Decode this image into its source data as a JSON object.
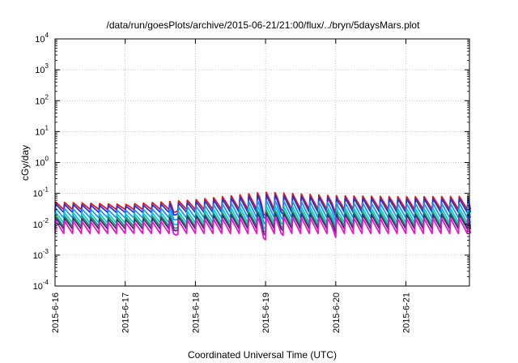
{
  "chart_data": {
    "type": "line",
    "title": "/data/run/goesPlots/archive/2015-06-21/21:00/flux/../bryn/5daysMars.plot",
    "xlabel": "Coordinated Universal Time (UTC)",
    "ylabel": "cGy/day",
    "yscale": "log",
    "ylim": [
      0.0001,
      10000
    ],
    "xlim_days": [
      0,
      5.92
    ],
    "grid": true,
    "legend": "none",
    "x_ticks": [
      "2015-6-16",
      "2015-6-17",
      "2015-6-18",
      "2015-6-19",
      "2015-6-20",
      "2015-6-21"
    ],
    "y_ticks": [
      {
        "base": "10",
        "exp": "-4"
      },
      {
        "base": "10",
        "exp": "-3"
      },
      {
        "base": "10",
        "exp": "-2"
      },
      {
        "base": "10",
        "exp": "-1"
      },
      {
        "base": "10",
        "exp": "0"
      },
      {
        "base": "10",
        "exp": "1"
      },
      {
        "base": "10",
        "exp": "2"
      },
      {
        "base": "10",
        "exp": "3"
      },
      {
        "base": "10",
        "exp": "4"
      }
    ],
    "oscillation_period_hours": 3,
    "series": [
      {
        "color": "#ee1111",
        "base": 0.03,
        "peaks": [
          0.052,
          0.044,
          0.062,
          0.11,
          0.085,
          0.078,
          0.08
        ]
      },
      {
        "color": "#2233dd",
        "base": 0.024,
        "peaks": [
          0.045,
          0.038,
          0.052,
          0.09,
          0.072,
          0.066,
          0.068
        ]
      },
      {
        "color": "#1e90ff",
        "base": 0.016,
        "peaks": [
          0.033,
          0.028,
          0.038,
          0.06,
          0.05,
          0.046,
          0.048
        ]
      },
      {
        "color": "#00ccdd",
        "base": 0.011,
        "peaks": [
          0.024,
          0.021,
          0.027,
          0.04,
          0.034,
          0.032,
          0.033
        ]
      },
      {
        "color": "#229955",
        "base": 0.0085,
        "peaks": [
          0.019,
          0.017,
          0.021,
          0.028,
          0.026,
          0.024,
          0.025
        ]
      },
      {
        "color": "#333377",
        "base": 0.007,
        "peaks": [
          0.016,
          0.014,
          0.018,
          0.023,
          0.021,
          0.02,
          0.021
        ]
      },
      {
        "color": "#ee11cc",
        "base": 0.005,
        "peaks": [
          0.013,
          0.011,
          0.014,
          0.017,
          0.016,
          0.015,
          0.016
        ]
      }
    ],
    "dips": [
      {
        "day": 1.7,
        "factor": 0.55
      },
      {
        "day": 2.98,
        "factor": 0.45
      },
      {
        "day": 3.22,
        "factor": 0.75
      },
      {
        "day": 4.0,
        "factor": 0.75
      }
    ]
  }
}
